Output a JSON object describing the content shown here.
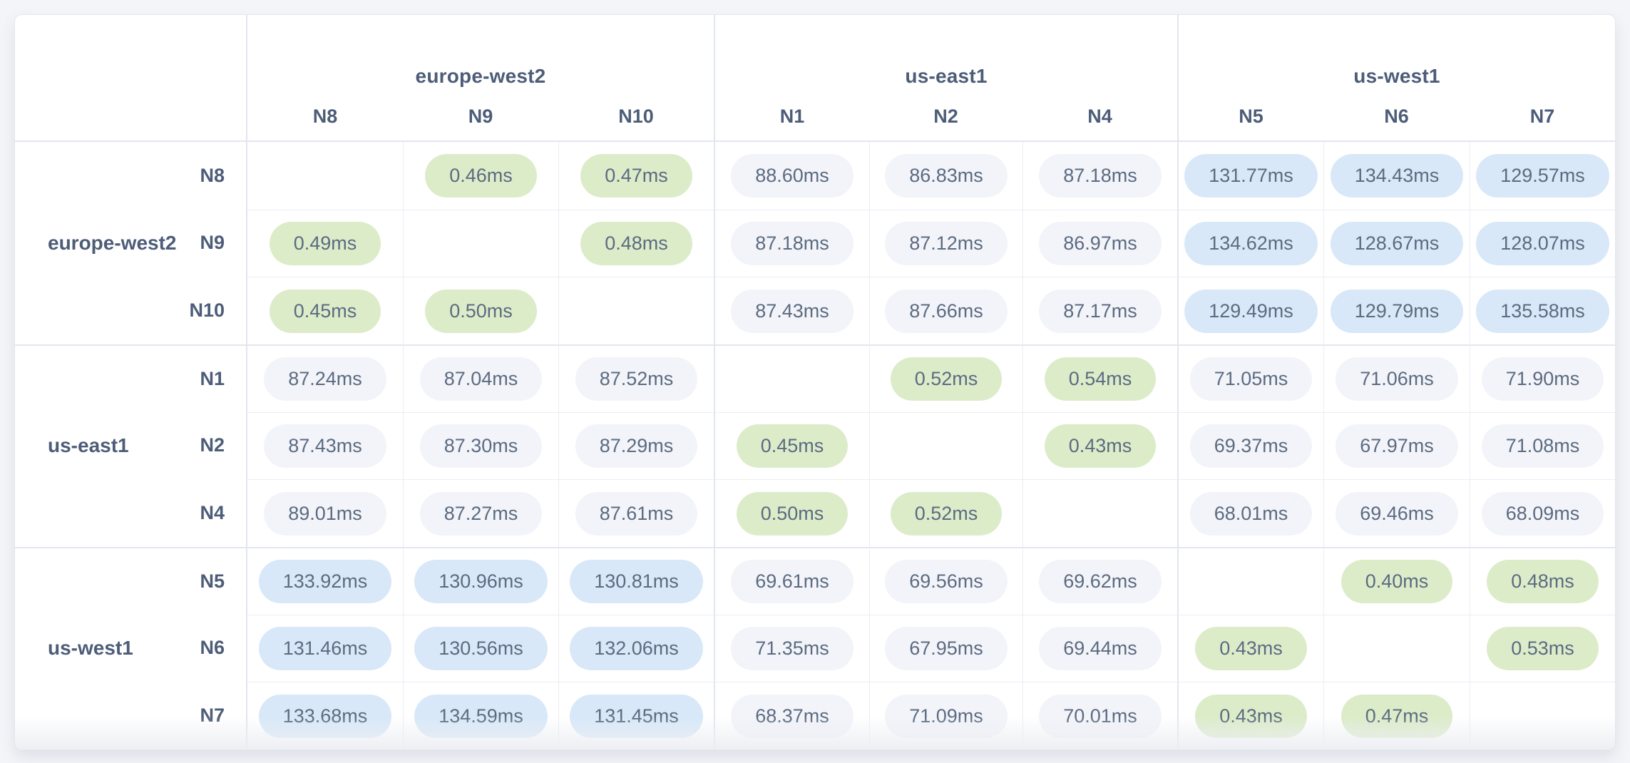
{
  "colors": {
    "page_bg": "#f3f5f9",
    "card_bg": "#ffffff",
    "border_light": "#eaedf3",
    "border_group": "#e2e6ee",
    "label_text": "#4d5d78",
    "value_text": "#5c6b81",
    "pill_same_region": "#dcecc9",
    "pill_transatlantic": "#d8e8f8",
    "pill_cross_region": "#f2f4f9"
  },
  "pill_rules": {
    "green_below_ms": 1,
    "blue_at_or_above_ms": 100
  },
  "matrix": {
    "unit": "ms",
    "groups": [
      {
        "name": "europe-west2",
        "nodes": [
          "N8",
          "N9",
          "N10"
        ]
      },
      {
        "name": "us-east1",
        "nodes": [
          "N1",
          "N2",
          "N4"
        ]
      },
      {
        "name": "us-west1",
        "nodes": [
          "N5",
          "N6",
          "N7"
        ]
      }
    ]
  },
  "chart_data": {
    "type": "heatmap",
    "title": "",
    "unit": "ms",
    "rows": [
      "N8",
      "N9",
      "N10",
      "N1",
      "N2",
      "N4",
      "N5",
      "N6",
      "N7"
    ],
    "cols": [
      "N8",
      "N9",
      "N10",
      "N1",
      "N2",
      "N4",
      "N5",
      "N6",
      "N7"
    ],
    "row_groups": [
      "europe-west2",
      "europe-west2",
      "europe-west2",
      "us-east1",
      "us-east1",
      "us-east1",
      "us-west1",
      "us-west1",
      "us-west1"
    ],
    "col_groups": [
      "europe-west2",
      "europe-west2",
      "europe-west2",
      "us-east1",
      "us-east1",
      "us-east1",
      "us-west1",
      "us-west1",
      "us-west1"
    ],
    "matrix_ms": [
      [
        null,
        0.46,
        0.47,
        88.6,
        86.83,
        87.18,
        131.77,
        134.43,
        129.57
      ],
      [
        0.49,
        null,
        0.48,
        87.18,
        87.12,
        86.97,
        134.62,
        128.67,
        128.07
      ],
      [
        0.45,
        0.5,
        null,
        87.43,
        87.66,
        87.17,
        129.49,
        129.79,
        135.58
      ],
      [
        87.24,
        87.04,
        87.52,
        null,
        0.52,
        0.54,
        71.05,
        71.06,
        71.9
      ],
      [
        87.43,
        87.3,
        87.29,
        0.45,
        null,
        0.43,
        69.37,
        67.97,
        71.08
      ],
      [
        89.01,
        87.27,
        87.61,
        0.5,
        0.52,
        null,
        68.01,
        69.46,
        68.09
      ],
      [
        133.92,
        130.96,
        130.81,
        69.61,
        69.56,
        69.62,
        null,
        0.4,
        0.48
      ],
      [
        131.46,
        130.56,
        132.06,
        71.35,
        67.95,
        69.44,
        0.43,
        null,
        0.53
      ],
      [
        133.68,
        134.59,
        131.45,
        68.37,
        71.09,
        70.01,
        0.43,
        0.47,
        null
      ]
    ]
  }
}
